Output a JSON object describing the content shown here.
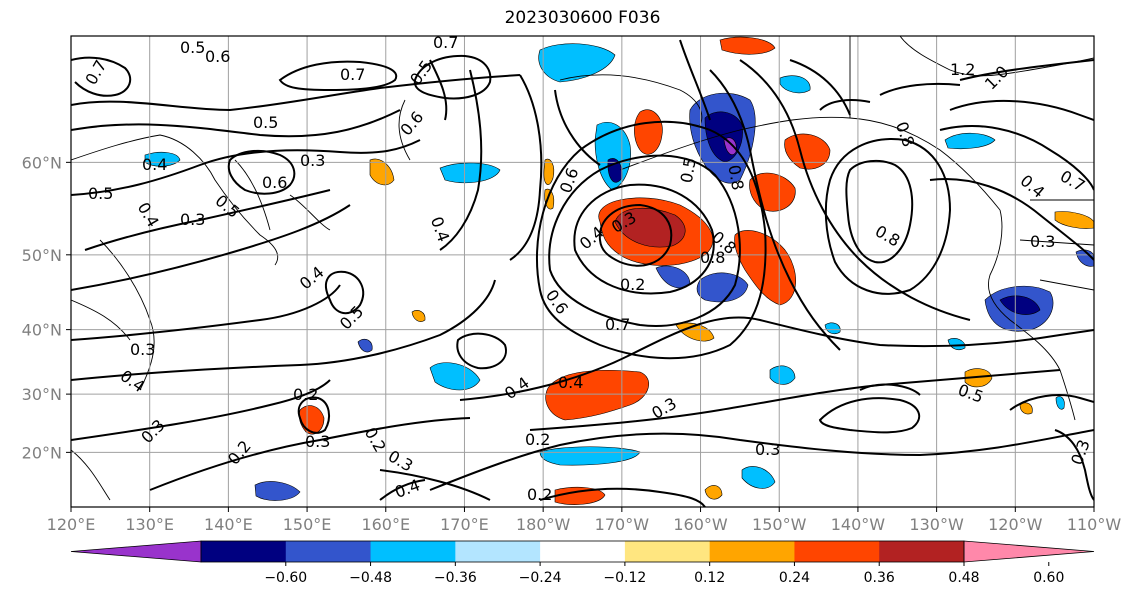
{
  "title": "2023030600 F036",
  "map": {
    "lon_ticks": [
      "120°E",
      "130°E",
      "140°E",
      "150°E",
      "160°E",
      "170°E",
      "180°W",
      "170°W",
      "160°W",
      "150°W",
      "140°W",
      "130°W",
      "120°W",
      "110°W"
    ],
    "lat_ticks": [
      "20°N",
      "30°N",
      "40°N",
      "50°N",
      "60°N"
    ],
    "lon_range": [
      120,
      250
    ],
    "lat_range": [
      10,
      70
    ],
    "grid": true
  },
  "colorbar": {
    "ticks": [
      "−0.60",
      "−0.48",
      "−0.36",
      "−0.24",
      "−0.12",
      "0.12",
      "0.24",
      "0.36",
      "0.48",
      "0.60"
    ],
    "colors": [
      "#9933cc",
      "#000080",
      "#3355cc",
      "#00bfff",
      "#b3e5ff",
      "#ffffff",
      "#ffe680",
      "#ffa500",
      "#ff4500",
      "#b22222",
      "#ff88aa"
    ],
    "extend": "both"
  },
  "contour_labels": [
    {
      "text": "0.5"
    },
    {
      "text": "0.6"
    },
    {
      "text": "0.7"
    },
    {
      "text": "0.7"
    },
    {
      "text": "0.7"
    },
    {
      "text": "0.5"
    },
    {
      "text": "0.5"
    },
    {
      "text": "0.6"
    },
    {
      "text": "0.3"
    },
    {
      "text": "0.4"
    },
    {
      "text": "0.6"
    },
    {
      "text": "0.5"
    },
    {
      "text": "0.3"
    },
    {
      "text": "0.5"
    },
    {
      "text": "0.4"
    },
    {
      "text": "0.4"
    },
    {
      "text": "0.5"
    },
    {
      "text": "0.3"
    },
    {
      "text": "0.4"
    },
    {
      "text": "0.3"
    },
    {
      "text": "0.2"
    },
    {
      "text": "0.3"
    },
    {
      "text": "0.2"
    },
    {
      "text": "0.2"
    },
    {
      "text": "0.3"
    },
    {
      "text": "0.4"
    },
    {
      "text": "0.4"
    },
    {
      "text": "0.4"
    },
    {
      "text": "0.2"
    },
    {
      "text": "0.2"
    },
    {
      "text": "0.3"
    },
    {
      "text": "0.4"
    },
    {
      "text": "0.3"
    },
    {
      "text": "0.6"
    },
    {
      "text": "0.7"
    },
    {
      "text": "0.2"
    },
    {
      "text": "0.8"
    },
    {
      "text": "0.8"
    },
    {
      "text": "0.5"
    },
    {
      "text": "0.6"
    },
    {
      "text": "0.8"
    },
    {
      "text": "0.4"
    },
    {
      "text": "0.3"
    },
    {
      "text": "1.2"
    },
    {
      "text": "1.0"
    },
    {
      "text": "0.8"
    },
    {
      "text": "0.7"
    },
    {
      "text": "0.4"
    },
    {
      "text": "0.3"
    },
    {
      "text": "0.8"
    },
    {
      "text": "0.5"
    },
    {
      "text": "0.3"
    }
  ]
}
